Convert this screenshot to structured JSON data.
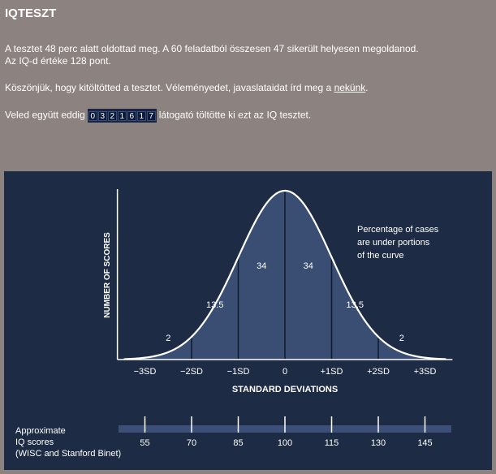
{
  "page": {
    "title": "IQTESZT",
    "result_line1": "A tesztet 48 perc alatt oldottad meg. A 60 feladatból összesen 47 sikerült helyesen megoldanod.",
    "result_line2": "Az IQ-d értéke 128 pont.",
    "thanks_text": "Köszönjük, hogy kitöltötted a tesztet. Véleményedet, javaslataidat írd meg a",
    "thanks_link": "nekünk",
    "thanks_end": ".",
    "visitors_prefix": "Veled együtt eddig",
    "visitors_suffix": "látogató töltötte ki ezt az IQ tesztet.",
    "counter_digits": [
      "0",
      "3",
      "2",
      "1",
      "6",
      "1",
      "7"
    ]
  },
  "chart_data": {
    "type": "area",
    "xlabel": "STANDARD DEVIATIONS",
    "ylabel": "NUMBER OF SCORES",
    "annotation": [
      "Percentage of cases",
      "are under portions",
      "of the curve"
    ],
    "x_ticks": [
      "−3SD",
      "−2SD",
      "−1SD",
      "0",
      "+1SD",
      "+2SD",
      "+3SD"
    ],
    "x_tick_values": [
      -3,
      -2,
      -1,
      0,
      1,
      2,
      3
    ],
    "xlim": [
      -3.45,
      3.45
    ],
    "segment_boundaries": [
      -3,
      -2,
      -1,
      0,
      1,
      2,
      3
    ],
    "segment_percentages": [
      {
        "x": -2.5,
        "label": "2"
      },
      {
        "x": -1.5,
        "label": "13.5"
      },
      {
        "x": -0.5,
        "label": "34"
      },
      {
        "x": 0.5,
        "label": "34"
      },
      {
        "x": 1.5,
        "label": "13.5"
      },
      {
        "x": 2.5,
        "label": "2"
      }
    ],
    "iq_scale": {
      "label": [
        "Approximate",
        "IQ scores",
        "(WISC and Stanford  Binet)"
      ],
      "values": [
        55,
        70,
        85,
        100,
        115,
        130,
        145
      ]
    },
    "colors": {
      "background": "#1d2b44",
      "fill": "#3a4d73",
      "curve": "#ffffff",
      "text": "#ffffff"
    }
  }
}
